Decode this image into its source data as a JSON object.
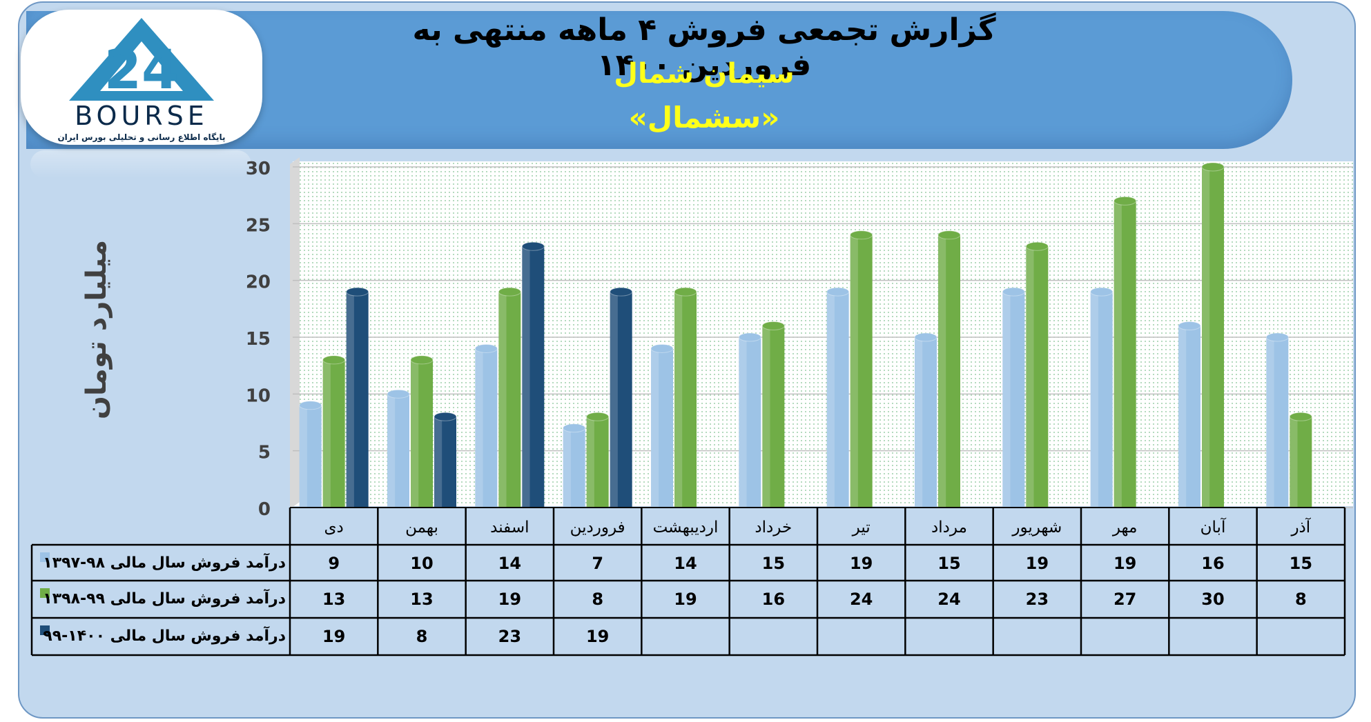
{
  "header": {
    "title": "گزارش تجمعی فروش ۴ ماهه منتهی به فروردین ۱۴۰۰",
    "subtitle1": "سیمان شمال",
    "subtitle2": "«سشمال»"
  },
  "logo": {
    "wordmark": "BOURSE",
    "tagline": "پایگاه اطلاع رسانی و تحلیلی بورس ایران",
    "icon": "bourse-24-logo-icon"
  },
  "colors": {
    "series1": "#9dc3e6",
    "series2": "#70ad47",
    "series3": "#1f4e79",
    "header": "#5b9bd5",
    "subtitle": "#ffff1a",
    "frame": "#c2d8ee"
  },
  "chart_data": {
    "type": "bar",
    "title": "گزارش تجمعی فروش ۴ ماهه منتهی به فروردین ۱۴۰۰",
    "xlabel": "",
    "ylabel": "میلیارد تومان",
    "ylim": [
      0,
      30
    ],
    "yticks": [
      0,
      5,
      10,
      15,
      20,
      25,
      30
    ],
    "grid": true,
    "legend": "data-table-left",
    "categories": [
      "دی",
      "بهمن",
      "اسفند",
      "فروردین",
      "اردیبهشت",
      "خرداد",
      "تیر",
      "مرداد",
      "شهریور",
      "مهر",
      "آبان",
      "آذر"
    ],
    "series": [
      {
        "name": "درآمد فروش سال مالی ۹۸-۱۳۹۷",
        "values": [
          9,
          10,
          14,
          7,
          14,
          15,
          19,
          15,
          19,
          19,
          16,
          15
        ]
      },
      {
        "name": "درآمد فروش سال مالی ۹۹-۱۳۹۸",
        "values": [
          13,
          13,
          19,
          8,
          19,
          16,
          24,
          24,
          23,
          27,
          30,
          8
        ]
      },
      {
        "name": "درآمد فروش سال مالی ۱۴۰۰-۹۹",
        "values": [
          19,
          8,
          23,
          19,
          null,
          null,
          null,
          null,
          null,
          null,
          null,
          null
        ]
      }
    ]
  }
}
